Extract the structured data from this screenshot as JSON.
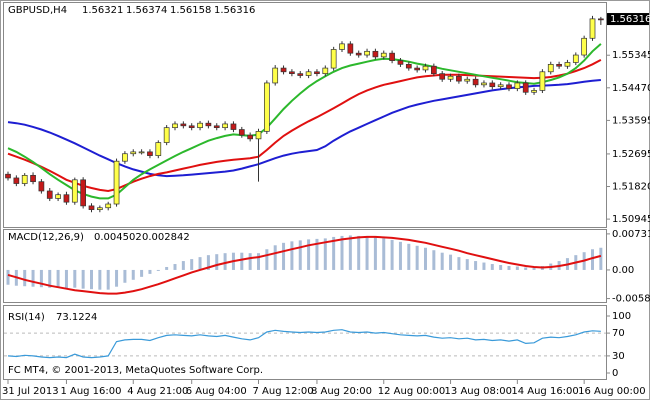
{
  "chart_data": [
    {
      "type": "candlestick",
      "title": "GBPUSD,H4",
      "categories": [
        "31 Jul 2013",
        null,
        null,
        null,
        null,
        null,
        null,
        "1 Aug 16:00",
        null,
        null,
        null,
        null,
        null,
        null,
        null,
        "4 Aug 21:00",
        null,
        null,
        null,
        null,
        null,
        null,
        "6 Aug 04:00",
        null,
        null,
        null,
        null,
        null,
        null,
        null,
        "7 Aug 12:00",
        null,
        null,
        null,
        null,
        null,
        null,
        "8 Aug 20:00",
        null,
        null,
        null,
        null,
        null,
        null,
        null,
        "12 Aug 00:00",
        null,
        null,
        null,
        null,
        null,
        null,
        null,
        "13 Aug 08:00",
        null,
        null,
        null,
        null,
        null,
        null,
        null,
        "14 Aug 16:00",
        null,
        null,
        null,
        null,
        null,
        null,
        null,
        "16 Aug 00:00",
        null,
        null
      ],
      "open": [
        1.5215,
        1.5205,
        1.519,
        1.5212,
        1.5195,
        1.517,
        1.515,
        1.516,
        1.514,
        1.52,
        1.513,
        1.512,
        1.5125,
        1.5135,
        1.525,
        1.527,
        1.5275,
        1.5275,
        1.5265,
        1.53,
        1.534,
        1.535,
        1.5345,
        1.534,
        1.5352,
        1.5345,
        1.534,
        1.535,
        1.5335,
        1.532,
        1.531,
        1.533,
        1.546,
        1.55,
        1.549,
        1.5485,
        1.548,
        1.549,
        1.5485,
        1.55,
        1.555,
        1.5565,
        1.554,
        1.5535,
        1.5545,
        1.553,
        1.554,
        1.552,
        1.551,
        1.55,
        1.5495,
        1.5505,
        1.5485,
        1.547,
        1.5478,
        1.5465,
        1.547,
        1.5455,
        1.546,
        1.545,
        1.5455,
        1.5445,
        1.546,
        1.5435,
        1.544,
        1.549,
        1.551,
        1.5505,
        1.5515,
        1.5535,
        1.558,
        1.56321
      ],
      "high": [
        1.5222,
        1.5212,
        1.5218,
        1.522,
        1.5202,
        1.5178,
        1.5166,
        1.5168,
        1.5206,
        1.5207,
        1.5137,
        1.5131,
        1.5141,
        1.5257,
        1.5277,
        1.5282,
        1.5282,
        1.5282,
        1.5306,
        1.5347,
        1.5357,
        1.5357,
        1.5352,
        1.5358,
        1.5359,
        1.5352,
        1.5357,
        1.5357,
        1.5342,
        1.5327,
        1.5337,
        1.5467,
        1.5508,
        1.5507,
        1.5497,
        1.5492,
        1.5497,
        1.5497,
        1.5507,
        1.5557,
        1.5572,
        1.5572,
        1.5547,
        1.5552,
        1.5552,
        1.5547,
        1.5547,
        1.5527,
        1.5517,
        1.5507,
        1.5512,
        1.5512,
        1.5492,
        1.5485,
        1.5485,
        1.5477,
        1.5477,
        1.5467,
        1.5467,
        1.5462,
        1.5462,
        1.5467,
        1.5467,
        1.5447,
        1.5497,
        1.5517,
        1.5517,
        1.5522,
        1.5542,
        1.5587,
        1.564,
        1.56374
      ],
      "low": [
        1.5198,
        1.5183,
        1.5183,
        1.5188,
        1.5163,
        1.5143,
        1.5143,
        1.5133,
        1.5133,
        1.5123,
        1.5113,
        1.5113,
        1.5118,
        1.5128,
        1.5243,
        1.5263,
        1.5268,
        1.5258,
        1.5258,
        1.5293,
        1.5333,
        1.5338,
        1.5333,
        1.5333,
        1.5338,
        1.5333,
        1.5333,
        1.5328,
        1.5313,
        1.5303,
        1.5195,
        1.5323,
        1.5453,
        1.5483,
        1.5478,
        1.5473,
        1.5473,
        1.5478,
        1.5478,
        1.5493,
        1.5543,
        1.5533,
        1.5528,
        1.5528,
        1.5523,
        1.5523,
        1.5513,
        1.5503,
        1.5493,
        1.5488,
        1.5488,
        1.5478,
        1.5463,
        1.5463,
        1.5458,
        1.5458,
        1.5448,
        1.5448,
        1.5443,
        1.5443,
        1.5438,
        1.5438,
        1.5428,
        1.5428,
        1.5433,
        1.5483,
        1.5498,
        1.5498,
        1.5508,
        1.5528,
        1.5573,
        1.56158
      ],
      "close": [
        1.5205,
        1.519,
        1.5212,
        1.5195,
        1.517,
        1.515,
        1.516,
        1.514,
        1.52,
        1.513,
        1.512,
        1.5125,
        1.5135,
        1.525,
        1.527,
        1.5275,
        1.5275,
        1.5265,
        1.53,
        1.534,
        1.535,
        1.5345,
        1.534,
        1.5352,
        1.5345,
        1.534,
        1.535,
        1.5335,
        1.532,
        1.531,
        1.533,
        1.546,
        1.55,
        1.549,
        1.5485,
        1.548,
        1.549,
        1.5485,
        1.55,
        1.555,
        1.5565,
        1.554,
        1.5535,
        1.5545,
        1.553,
        1.554,
        1.552,
        1.551,
        1.55,
        1.5495,
        1.5505,
        1.5485,
        1.547,
        1.5478,
        1.5465,
        1.547,
        1.5455,
        1.546,
        1.545,
        1.5455,
        1.5445,
        1.546,
        1.5435,
        1.544,
        1.549,
        1.551,
        1.5505,
        1.5515,
        1.5535,
        1.558,
        1.56321,
        1.56316
      ],
      "up_color": "#ffff4a",
      "down_color": "#c41a1a",
      "series": [
        {
          "color": "#1e1ed2",
          "values": [
            1.5355,
            1.5352,
            1.5348,
            1.5342,
            1.5335,
            1.5327,
            1.5318,
            1.5308,
            1.5298,
            1.5287,
            1.5276,
            1.5265,
            1.5255,
            1.5245,
            1.5236,
            1.5228,
            1.5222,
            1.5216,
            1.5212,
            1.521,
            1.5211,
            1.5212,
            1.5214,
            1.5216,
            1.5218,
            1.522,
            1.5222,
            1.5225,
            1.523,
            1.5236,
            1.5242,
            1.525,
            1.5258,
            1.5265,
            1.527,
            1.5274,
            1.5277,
            1.528,
            1.529,
            1.5305,
            1.5318,
            1.533,
            1.534,
            1.535,
            1.536,
            1.537,
            1.538,
            1.5388,
            1.5396,
            1.5402,
            1.5407,
            1.5412,
            1.5416,
            1.542,
            1.5424,
            1.5428,
            1.5432,
            1.5436,
            1.544,
            1.5443,
            1.5446,
            1.5448,
            1.545,
            1.5452,
            1.5453,
            1.5454,
            1.5455,
            1.5457,
            1.546,
            1.5463,
            1.5466,
            1.5468
          ]
        },
        {
          "color": "#e01010",
          "values": [
            1.527,
            1.5262,
            1.5254,
            1.5245,
            1.5235,
            1.5224,
            1.5212,
            1.52,
            1.5192,
            1.5184,
            1.5178,
            1.5173,
            1.517,
            1.5175,
            1.5185,
            1.5195,
            1.5203,
            1.521,
            1.5216,
            1.522,
            1.5225,
            1.523,
            1.5235,
            1.524,
            1.5244,
            1.5248,
            1.5251,
            1.5254,
            1.5256,
            1.5258,
            1.5262,
            1.528,
            1.53,
            1.5318,
            1.5332,
            1.5345,
            1.5357,
            1.5368,
            1.538,
            1.5392,
            1.5405,
            1.5418,
            1.543,
            1.544,
            1.5448,
            1.5455,
            1.546,
            1.5465,
            1.547,
            1.5475,
            1.5478,
            1.548,
            1.5482,
            1.5482,
            1.5482,
            1.5481,
            1.548,
            1.5479,
            1.5478,
            1.5477,
            1.5476,
            1.5475,
            1.5474,
            1.5473,
            1.5474,
            1.5476,
            1.548,
            1.5485,
            1.5492,
            1.55,
            1.551,
            1.5522
          ]
        },
        {
          "color": "#2cb82c",
          "values": [
            1.5285,
            1.5275,
            1.5262,
            1.5248,
            1.5232,
            1.5215,
            1.52,
            1.5186,
            1.5172,
            1.5162,
            1.5155,
            1.515,
            1.515,
            1.516,
            1.518,
            1.52,
            1.5215,
            1.5228,
            1.524,
            1.5252,
            1.5264,
            1.5275,
            1.5285,
            1.5295,
            1.5305,
            1.5312,
            1.5318,
            1.5322,
            1.532,
            1.5318,
            1.5322,
            1.534,
            1.5365,
            1.539,
            1.5412,
            1.5432,
            1.545,
            1.5465,
            1.5478,
            1.549,
            1.55,
            1.5507,
            1.5512,
            1.5517,
            1.5522,
            1.5525,
            1.5524,
            1.5521,
            1.5517,
            1.5512,
            1.5508,
            1.5503,
            1.5498,
            1.5494,
            1.549,
            1.5486,
            1.5482,
            1.5478,
            1.5474,
            1.547,
            1.5466,
            1.5462,
            1.546,
            1.5458,
            1.5462,
            1.5468,
            1.5475,
            1.5485,
            1.55,
            1.552,
            1.5545,
            1.5565
          ]
        }
      ],
      "ylim": [
        1.5076,
        1.5672
      ],
      "yticks": [
        {
          "value": 1.55345,
          "label": "1.55345"
        },
        {
          "value": 1.5447,
          "label": "1.54470"
        },
        {
          "value": 1.53595,
          "label": "1.53595"
        },
        {
          "value": 1.52695,
          "label": "1.52695"
        },
        {
          "value": 1.5182,
          "label": "1.51820"
        },
        {
          "value": 1.50945,
          "label": "1.50945"
        }
      ]
    },
    {
      "type": "macd",
      "title": "MACD(12,26,9)",
      "series": [
        {
          "style": "histogram",
          "color": "#a9bcd6",
          "values": [
            -0.003,
            -0.0032,
            -0.0033,
            -0.0034,
            -0.0035,
            -0.0036,
            -0.0036,
            -0.0037,
            -0.0036,
            -0.0038,
            -0.0039,
            -0.004,
            -0.004,
            -0.0034,
            -0.0026,
            -0.002,
            -0.0014,
            -0.0008,
            -0.0002,
            0.0006,
            0.0012,
            0.0018,
            0.0022,
            0.0026,
            0.003,
            0.0032,
            0.0034,
            0.0035,
            0.0035,
            0.0034,
            0.0034,
            0.0042,
            0.005,
            0.0055,
            0.0058,
            0.006,
            0.0062,
            0.0063,
            0.0064,
            0.0067,
            0.0069,
            0.007,
            0.0069,
            0.0068,
            0.0066,
            0.0064,
            0.0061,
            0.0057,
            0.0053,
            0.0049,
            0.0045,
            0.004,
            0.0035,
            0.0031,
            0.0026,
            0.0022,
            0.0018,
            0.0015,
            0.0012,
            0.001,
            0.0008,
            0.0007,
            0.0005,
            0.0004,
            0.0008,
            0.0013,
            0.0018,
            0.0024,
            0.003,
            0.0036,
            0.0042,
            0.004502
          ]
        },
        {
          "style": "line",
          "color": "#e01010",
          "values": [
            -0.001,
            -0.0015,
            -0.002,
            -0.0024,
            -0.0028,
            -0.0032,
            -0.0035,
            -0.0038,
            -0.0041,
            -0.0043,
            -0.0045,
            -0.0047,
            -0.0048,
            -0.0048,
            -0.0046,
            -0.0043,
            -0.0039,
            -0.0034,
            -0.0029,
            -0.0023,
            -0.0017,
            -0.0011,
            -0.0005,
            0.0,
            0.0005,
            0.001,
            0.0014,
            0.0018,
            0.0021,
            0.0024,
            0.0026,
            0.003,
            0.0034,
            0.0038,
            0.0042,
            0.0046,
            0.005,
            0.0053,
            0.0056,
            0.0059,
            0.0062,
            0.0064,
            0.0066,
            0.0067,
            0.0067,
            0.0066,
            0.0065,
            0.0063,
            0.0061,
            0.0058,
            0.0055,
            0.0051,
            0.0047,
            0.0043,
            0.0039,
            0.0034,
            0.003,
            0.0026,
            0.0022,
            0.0018,
            0.0014,
            0.0011,
            0.0008,
            0.0006,
            0.0005,
            0.0006,
            0.0008,
            0.0011,
            0.0015,
            0.0019,
            0.0024,
            0.002842
          ]
        }
      ],
      "ylim": [
        -0.0063,
        0.0079
      ],
      "yticks": [
        0.007314,
        {
          "value": 0,
          "label": "0.00"
        },
        -0.005807
      ]
    },
    {
      "type": "rsi",
      "title": "RSI(14)",
      "series": [
        {
          "style": "line",
          "color": "#3a9ad9",
          "values": [
            30,
            29,
            31,
            30,
            28,
            27,
            28,
            27,
            33,
            28,
            27,
            28,
            30,
            55,
            58,
            59,
            59,
            57,
            62,
            66,
            67,
            66,
            65,
            67,
            65,
            64,
            66,
            63,
            60,
            58,
            62,
            72,
            75,
            73,
            72,
            71,
            72,
            71,
            72,
            75,
            76,
            72,
            71,
            72,
            70,
            71,
            69,
            67,
            66,
            65,
            66,
            63,
            61,
            62,
            60,
            61,
            58,
            59,
            57,
            58,
            56,
            58,
            52,
            53,
            61,
            63,
            62,
            64,
            67,
            72,
            74,
            73.1224
          ]
        }
      ],
      "ylim": [
        0,
        100
      ],
      "yticks": [
        100,
        70,
        30,
        0
      ]
    }
  ],
  "footer": "FC MT4, © 2001-2013, MetaQuotes Software Corp."
}
